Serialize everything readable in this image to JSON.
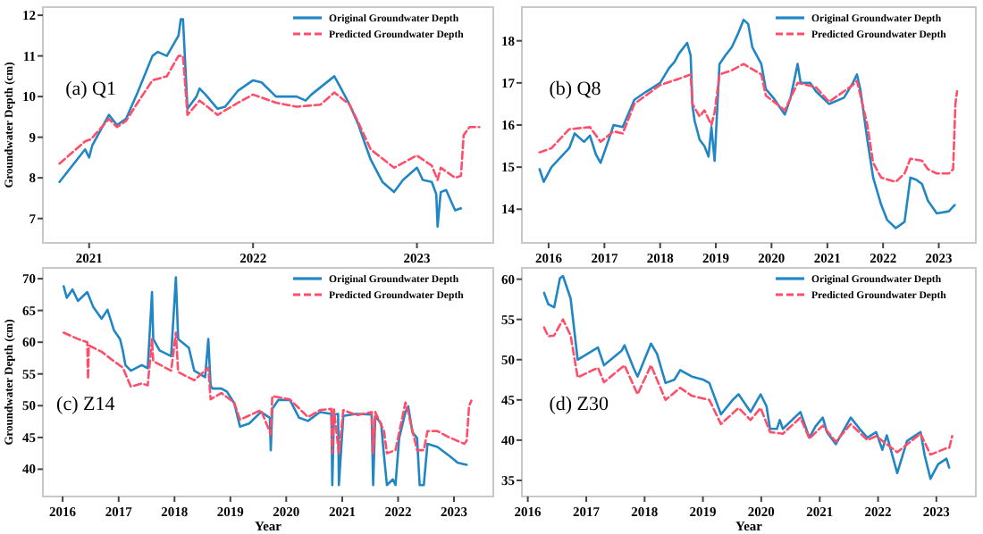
{
  "chart_data": [
    {
      "type": "line",
      "title": "(a) Q1",
      "ylabel": "Groundwater Depth (cm)",
      "xlim": [
        "2020-09-20",
        "2023-06-20"
      ],
      "ylim": [
        6.4,
        12.2
      ],
      "xticks": [
        "2021",
        "2022",
        "2023"
      ],
      "yticks": [
        7,
        8,
        9,
        10,
        11,
        12
      ],
      "legend": "top right",
      "grid": false,
      "tick_labels": "xy",
      "series": [
        {
          "name": "Original Groundwater Depth",
          "color": "#2186c4",
          "line_style": "solid",
          "x": [
            "2020-10-27",
            "2020-12-23",
            "2021-01-01",
            "2021-01-08",
            "2021-02-14",
            "2021-03-04",
            "2021-03-24",
            "2021-04-19",
            "2021-05-22",
            "2021-06-03",
            "2021-06-23",
            "2021-07-19",
            "2021-07-24",
            "2021-07-29",
            "2021-08-08",
            "2021-08-28",
            "2021-09-04",
            "2021-09-17",
            "2021-10-14",
            "2021-10-31",
            "2021-11-29",
            "2022-01-01",
            "2022-01-20",
            "2022-02-21",
            "2022-04-08",
            "2022-04-28",
            "2022-05-11",
            "2022-07-01",
            "2022-07-16",
            "2022-08-04",
            "2022-08-24",
            "2022-09-07",
            "2022-09-20",
            "2022-10-16",
            "2022-11-11",
            "2022-12-01",
            "2023-01-01",
            "2023-01-14",
            "2023-02-03",
            "2023-02-13",
            "2023-02-16",
            "2023-02-20",
            "2023-02-23",
            "2023-03-07",
            "2023-03-27",
            "2023-04-09"
          ],
          "values": [
            7.9,
            8.7,
            8.5,
            8.8,
            9.55,
            9.3,
            9.45,
            10.1,
            11.0,
            11.1,
            11.0,
            11.5,
            11.9,
            11.9,
            9.7,
            10.0,
            10.2,
            10.05,
            9.7,
            9.75,
            10.15,
            10.4,
            10.35,
            10.0,
            10.0,
            9.9,
            10.05,
            10.5,
            10.2,
            9.8,
            9.3,
            8.85,
            8.45,
            7.9,
            7.65,
            7.95,
            8.25,
            7.95,
            7.9,
            7.6,
            6.8,
            7.3,
            7.65,
            7.7,
            7.2,
            7.25
          ]
        },
        {
          "name": "Predicted Groundwater Depth",
          "color": "#ff4d6a",
          "line_style": "dashed",
          "x": [
            "2020-10-27",
            "2020-12-23",
            "2021-01-05",
            "2021-02-14",
            "2021-03-04",
            "2021-03-24",
            "2021-04-19",
            "2021-05-22",
            "2021-06-23",
            "2021-07-19",
            "2021-07-29",
            "2021-08-08",
            "2021-09-04",
            "2021-10-14",
            "2021-11-29",
            "2022-01-01",
            "2022-02-21",
            "2022-04-08",
            "2022-05-31",
            "2022-07-01",
            "2022-08-04",
            "2022-08-24",
            "2022-09-20",
            "2022-11-11",
            "2023-01-01",
            "2023-01-14",
            "2023-02-03",
            "2023-02-16",
            "2023-02-23",
            "2023-03-27",
            "2023-04-09",
            "2023-04-15",
            "2023-04-28",
            "2023-05-20"
          ],
          "values": [
            8.35,
            8.9,
            8.95,
            9.45,
            9.25,
            9.4,
            9.85,
            10.4,
            10.5,
            11.0,
            11.0,
            9.55,
            9.9,
            9.55,
            9.85,
            10.05,
            9.85,
            9.75,
            9.8,
            10.1,
            9.8,
            9.35,
            8.7,
            8.25,
            8.55,
            8.45,
            8.3,
            7.95,
            8.25,
            8.0,
            8.05,
            9.05,
            9.25,
            9.25
          ]
        }
      ]
    },
    {
      "type": "line",
      "title": "(b) Q8",
      "xlim": [
        "2015-07-10",
        "2023-09-01"
      ],
      "ylim": [
        13.2,
        18.8
      ],
      "xticks": [
        "2016",
        "2017",
        "2018",
        "2019",
        "2020",
        "2021",
        "2022",
        "2023"
      ],
      "yticks": [
        14,
        15,
        16,
        17,
        18
      ],
      "legend": "top right",
      "grid": false,
      "tick_labels": "xy",
      "series": [
        {
          "name": "Original Groundwater Depth",
          "color": "#2186c4",
          "line_style": "solid",
          "x": [
            "2015-11-03",
            "2015-11-30",
            "2016-01-20",
            "2016-05-15",
            "2016-06-20",
            "2016-08-20",
            "2016-09-28",
            "2016-11-06",
            "2016-12-07",
            "2017-01-24",
            "2017-03-02",
            "2017-05-01",
            "2017-07-16",
            "2017-10-05",
            "2018-01-01",
            "2018-02-28",
            "2018-04-05",
            "2018-05-05",
            "2018-06-27",
            "2018-07-20",
            "2018-08-01",
            "2018-08-15",
            "2018-09-17",
            "2018-10-18",
            "2018-11-14",
            "2018-12-03",
            "2018-12-24",
            "2019-01-25",
            "2019-03-04",
            "2019-04-16",
            "2019-05-24",
            "2019-07-02",
            "2019-08-01",
            "2019-08-28",
            "2019-10-26",
            "2019-11-25",
            "2020-01-12",
            "2020-03-28",
            "2020-05-05",
            "2020-06-20",
            "2020-07-10",
            "2020-09-10",
            "2020-10-18",
            "2021-01-12",
            "2021-04-20",
            "2021-06-17",
            "2021-07-14",
            "2021-08-05",
            "2021-09-20",
            "2021-10-28",
            "2021-12-20",
            "2022-01-27",
            "2022-03-25",
            "2022-05-22",
            "2022-06-29",
            "2022-08-06",
            "2022-09-13",
            "2022-10-22",
            "2022-12-19",
            "2023-03-08",
            "2023-04-15"
          ],
          "values": [
            14.95,
            14.65,
            15.0,
            15.45,
            15.8,
            15.6,
            15.75,
            15.3,
            15.1,
            15.6,
            16.0,
            15.95,
            16.6,
            16.8,
            17.0,
            17.35,
            17.5,
            17.7,
            17.95,
            17.65,
            16.45,
            16.1,
            15.65,
            15.5,
            15.25,
            15.95,
            15.15,
            17.45,
            17.65,
            17.85,
            18.15,
            18.5,
            18.4,
            17.85,
            17.45,
            16.85,
            16.65,
            16.25,
            16.65,
            17.45,
            17.0,
            17.0,
            16.8,
            16.5,
            16.65,
            17.0,
            17.2,
            16.85,
            15.65,
            14.75,
            14.1,
            13.75,
            13.55,
            13.7,
            14.75,
            14.7,
            14.6,
            14.2,
            13.9,
            13.95,
            14.1
          ]
        },
        {
          "name": "Predicted Groundwater Depth",
          "color": "#ff4d6a",
          "line_style": "dashed",
          "x": [
            "2015-11-03",
            "2016-01-20",
            "2016-05-15",
            "2016-09-28",
            "2016-12-07",
            "2017-03-02",
            "2017-05-01",
            "2017-07-16",
            "2018-01-01",
            "2018-05-05",
            "2018-07-20",
            "2018-08-01",
            "2018-09-17",
            "2018-10-18",
            "2018-12-03",
            "2018-12-24",
            "2019-01-25",
            "2019-04-16",
            "2019-07-02",
            "2019-10-26",
            "2019-11-25",
            "2020-03-28",
            "2020-06-20",
            "2020-10-18",
            "2021-01-12",
            "2021-06-17",
            "2021-07-14",
            "2021-09-20",
            "2021-10-28",
            "2021-12-20",
            "2022-03-25",
            "2022-05-22",
            "2022-06-29",
            "2022-09-13",
            "2022-10-22",
            "2022-12-19",
            "2023-03-08",
            "2023-04-05",
            "2023-04-20",
            "2023-05-01"
          ],
          "values": [
            15.35,
            15.45,
            15.9,
            15.95,
            15.6,
            15.85,
            15.8,
            16.5,
            16.95,
            17.1,
            17.2,
            16.5,
            16.2,
            16.35,
            16.0,
            16.3,
            17.2,
            17.3,
            17.45,
            17.2,
            16.7,
            16.35,
            17.0,
            16.9,
            16.55,
            16.95,
            17.05,
            16.0,
            15.1,
            14.75,
            14.65,
            14.85,
            15.2,
            15.15,
            14.95,
            14.85,
            14.85,
            14.95,
            16.5,
            16.8
          ]
        }
      ]
    },
    {
      "type": "line",
      "title": "(c) Z14",
      "xlabel": "Year",
      "ylabel": "Groundwater Depth (cm)",
      "xlim": [
        "2015-08-25",
        "2023-09-15"
      ],
      "ylim": [
        35.7,
        71.7
      ],
      "xticks": [
        "2016",
        "2017",
        "2018",
        "2019",
        "2020",
        "2021",
        "2022",
        "2023"
      ],
      "yticks": [
        40,
        45,
        50,
        55,
        60,
        65,
        70
      ],
      "legend": "top right",
      "grid": false,
      "tick_labels": "xy",
      "series": [
        {
          "name": "Original Groundwater Depth",
          "color": "#2186c4",
          "line_style": "solid",
          "x": [
            "2016-01-08",
            "2016-01-28",
            "2016-03-05",
            "2016-04-10",
            "2016-06-10",
            "2016-07-18",
            "2016-09-12",
            "2016-10-20",
            "2016-12-01",
            "2017-01-10",
            "2017-01-28",
            "2017-02-14",
            "2017-03-22",
            "2017-06-01",
            "2017-07-10",
            "2017-08-07",
            "2017-08-15",
            "2017-09-25",
            "2017-12-10",
            "2018-01-10",
            "2018-01-25",
            "2018-04-05",
            "2018-05-10",
            "2018-07-20",
            "2018-08-10",
            "2018-08-25",
            "2018-09-06",
            "2018-11-03",
            "2018-12-10",
            "2019-01-26",
            "2019-03-05",
            "2019-05-04",
            "2019-07-20",
            "2019-09-16",
            "2019-09-22",
            "2019-10-02",
            "2019-11-10",
            "2020-01-25",
            "2020-03-25",
            "2020-05-22",
            "2020-08-08",
            "2020-10-22",
            "2020-10-28",
            "2020-11-08",
            "2020-12-05",
            "2020-12-10",
            "2021-01-08",
            "2021-04-05",
            "2021-07-12",
            "2021-07-22",
            "2021-08-05",
            "2021-09-12",
            "2021-10-01",
            "2021-10-20",
            "2021-11-28",
            "2021-12-15",
            "2022-01-08",
            "2022-02-18",
            "2022-03-08",
            "2022-04-05",
            "2022-05-05",
            "2022-05-22",
            "2022-06-18",
            "2022-07-12",
            "2022-09-15",
            "2022-12-02",
            "2023-01-26",
            "2023-03-25"
          ],
          "values": [
            68.8,
            67.0,
            68.3,
            66.5,
            67.9,
            65.6,
            63.7,
            65.1,
            61.9,
            60.5,
            58.7,
            56.4,
            55.5,
            56.4,
            55.9,
            67.9,
            60.5,
            58.7,
            57.8,
            70.2,
            60.5,
            59.1,
            55.5,
            54.5,
            60.5,
            53.2,
            52.7,
            52.7,
            52.2,
            50.4,
            46.7,
            47.2,
            49.0,
            48.1,
            43.0,
            49.5,
            50.9,
            50.9,
            48.1,
            47.6,
            49.0,
            48.7,
            37.5,
            48.6,
            48.7,
            37.5,
            48.4,
            48.7,
            48.6,
            37.5,
            48.4,
            47.2,
            42.1,
            37.5,
            38.4,
            37.5,
            44.9,
            49.0,
            49.9,
            45.8,
            44.9,
            37.5,
            37.5,
            44.0,
            43.5,
            42.1,
            41.0,
            40.7
          ]
        },
        {
          "name": "Predicted Groundwater Depth",
          "color": "#ff4d6a",
          "line_style": "dashed",
          "x": [
            "2016-01-08",
            "2016-04-10",
            "2016-06-10",
            "2016-06-15",
            "2016-06-20",
            "2016-09-12",
            "2016-12-01",
            "2017-01-28",
            "2017-03-22",
            "2017-06-01",
            "2017-07-10",
            "2017-08-07",
            "2017-08-15",
            "2017-12-10",
            "2018-01-10",
            "2018-01-25",
            "2018-05-10",
            "2018-08-10",
            "2018-08-25",
            "2018-11-03",
            "2019-01-26",
            "2019-03-05",
            "2019-07-20",
            "2019-09-22",
            "2019-10-02",
            "2020-01-25",
            "2020-05-22",
            "2020-08-08",
            "2020-10-22",
            "2020-10-28",
            "2020-11-08",
            "2020-12-10",
            "2021-01-08",
            "2021-04-05",
            "2021-07-12",
            "2021-07-22",
            "2021-08-05",
            "2021-10-01",
            "2021-10-20",
            "2021-12-15",
            "2022-02-18",
            "2022-03-08",
            "2022-04-05",
            "2022-05-05",
            "2022-06-18",
            "2022-07-12",
            "2022-09-15",
            "2022-12-02",
            "2023-03-10",
            "2023-03-25",
            "2023-04-10",
            "2023-04-25"
          ],
          "values": [
            61.5,
            60.5,
            60.0,
            54.2,
            59.5,
            58.5,
            57.0,
            56.0,
            53.0,
            53.5,
            53.2,
            60.5,
            57.0,
            55.5,
            61.5,
            55.3,
            54.0,
            56.0,
            51.0,
            52.0,
            50.5,
            47.8,
            49.3,
            45.5,
            51.5,
            51.0,
            48.2,
            49.3,
            49.5,
            42.5,
            49.4,
            42.5,
            49.3,
            48.5,
            49.0,
            42.5,
            49.0,
            46.0,
            42.5,
            43.0,
            50.5,
            49.0,
            46.0,
            43.0,
            43.0,
            46.0,
            46.0,
            45.0,
            44.0,
            44.5,
            50.0,
            50.8
          ]
        }
      ]
    },
    {
      "type": "line",
      "title": "(d) Z30",
      "xlabel": "Year",
      "xlim": [
        "2015-11-25",
        "2023-09-05"
      ],
      "ylim": [
        33.0,
        61.4
      ],
      "xticks": [
        "2016",
        "2017",
        "2018",
        "2019",
        "2020",
        "2021",
        "2022",
        "2023"
      ],
      "yticks": [
        35,
        40,
        45,
        50,
        55,
        60
      ],
      "legend": "top right",
      "grid": false,
      "tick_labels": "xy",
      "series": [
        {
          "name": "Original Groundwater Depth",
          "color": "#2186c4",
          "line_style": "solid",
          "x": [
            "2016-04-12",
            "2016-05-08",
            "2016-06-14",
            "2016-07-20",
            "2016-08-08",
            "2016-09-25",
            "2016-11-08",
            "2017-03-15",
            "2017-04-22",
            "2017-08-10",
            "2017-08-28",
            "2017-10-23",
            "2017-11-18",
            "2018-02-10",
            "2018-03-20",
            "2018-05-12",
            "2018-07-06",
            "2018-08-12",
            "2018-10-24",
            "2019-01-05",
            "2019-02-10",
            "2019-04-24",
            "2019-07-06",
            "2019-08-12",
            "2019-10-26",
            "2019-12-28",
            "2020-02-03",
            "2020-02-25",
            "2020-04-08",
            "2020-04-26",
            "2020-05-15",
            "2020-09-02",
            "2020-10-28",
            "2020-12-05",
            "2021-01-20",
            "2021-02-15",
            "2021-04-12",
            "2021-07-14",
            "2021-09-08",
            "2021-10-26",
            "2021-12-20",
            "2022-01-28",
            "2022-02-25",
            "2022-05-01",
            "2022-07-01",
            "2022-09-24",
            "2022-10-20",
            "2022-11-25",
            "2023-01-12",
            "2023-03-05",
            "2023-03-22"
          ],
          "values": [
            58.3,
            56.9,
            56.5,
            60.1,
            60.4,
            57.6,
            50.0,
            51.5,
            49.3,
            51.1,
            51.8,
            49.0,
            47.9,
            52.0,
            50.7,
            47.1,
            47.5,
            48.7,
            47.9,
            47.5,
            47.1,
            43.2,
            45.0,
            45.7,
            43.5,
            45.7,
            44.2,
            41.4,
            41.4,
            42.5,
            41.4,
            43.5,
            40.3,
            41.7,
            42.8,
            41.0,
            39.5,
            42.8,
            41.4,
            40.3,
            41.0,
            38.8,
            40.6,
            35.9,
            39.9,
            41.0,
            38.1,
            35.2,
            37.0,
            37.7,
            36.6
          ]
        },
        {
          "name": "Predicted Groundwater Depth",
          "color": "#ff4d6a",
          "line_style": "dashed",
          "x": [
            "2016-04-12",
            "2016-05-08",
            "2016-06-14",
            "2016-08-08",
            "2016-09-25",
            "2016-11-08",
            "2017-03-15",
            "2017-04-22",
            "2017-08-28",
            "2017-11-18",
            "2018-02-10",
            "2018-05-12",
            "2018-08-12",
            "2018-10-24",
            "2019-02-10",
            "2019-04-24",
            "2019-08-12",
            "2019-10-26",
            "2019-12-28",
            "2020-02-25",
            "2020-05-15",
            "2020-09-02",
            "2020-10-28",
            "2021-01-20",
            "2021-04-12",
            "2021-07-14",
            "2021-10-26",
            "2021-12-20",
            "2022-05-01",
            "2022-09-24",
            "2022-11-25",
            "2023-03-05",
            "2023-03-22",
            "2023-04-10"
          ],
          "values": [
            54.0,
            52.9,
            53.0,
            55.0,
            53.0,
            47.8,
            49.0,
            47.2,
            49.3,
            45.7,
            49.3,
            45.0,
            46.5,
            45.5,
            45.0,
            42.0,
            44.0,
            42.5,
            44.0,
            41.0,
            40.8,
            42.8,
            40.2,
            41.8,
            39.8,
            42.0,
            40.0,
            40.5,
            38.5,
            40.8,
            38.2,
            39.0,
            39.0,
            40.5
          ]
        }
      ]
    }
  ]
}
